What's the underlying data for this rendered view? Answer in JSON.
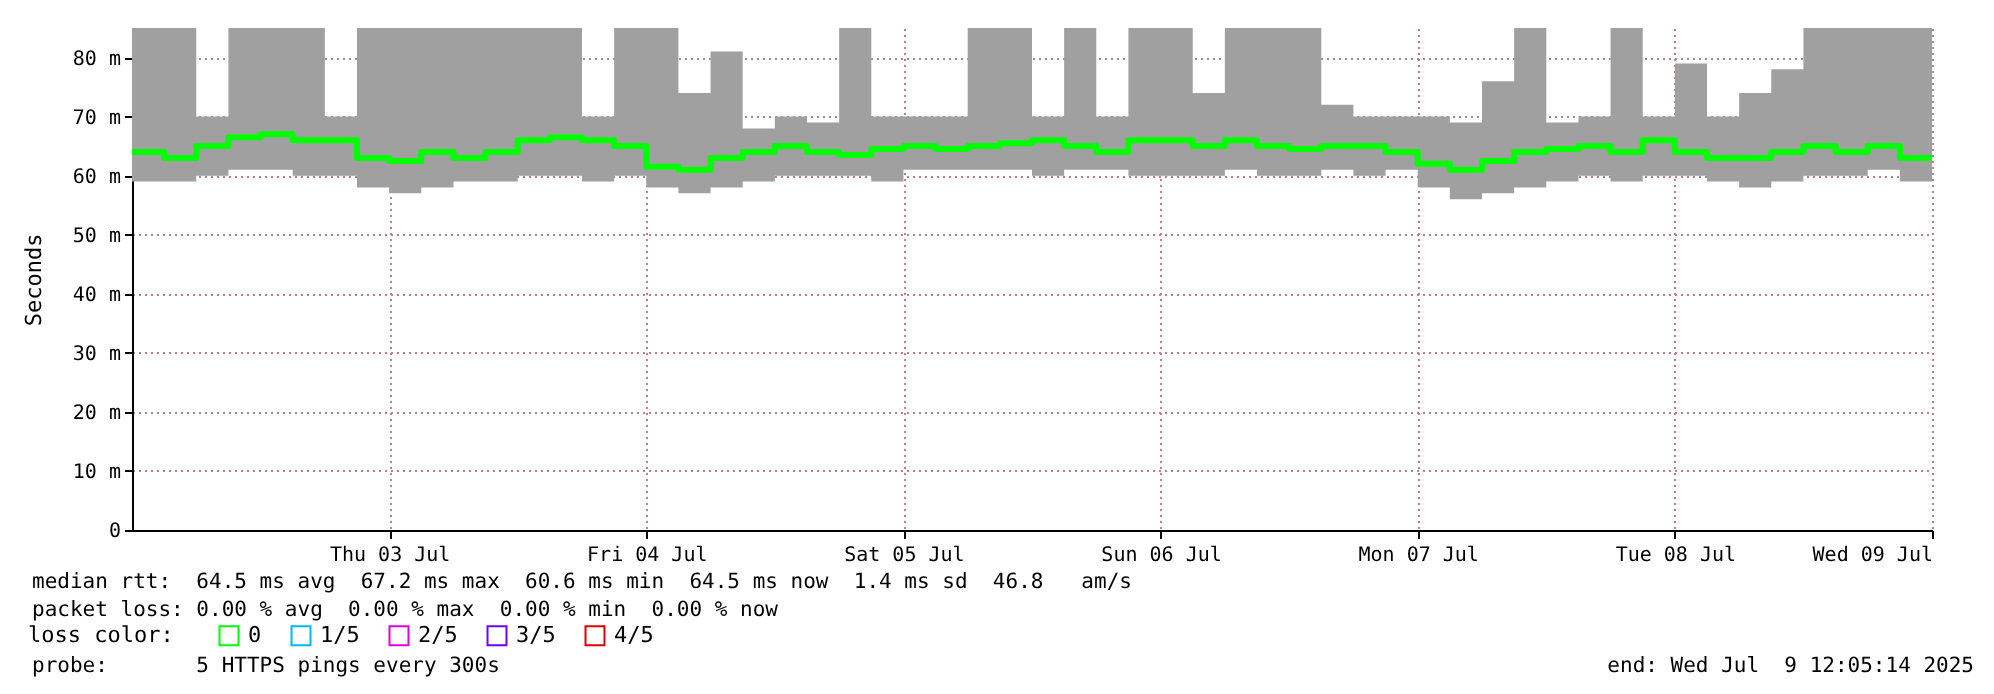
{
  "chart_data": {
    "type": "step",
    "ylabel": "Seconds",
    "x": [
      "2025-07-02T00:00",
      "2025-07-02T03:00",
      "2025-07-02T06:00",
      "2025-07-02T09:00",
      "2025-07-02T12:00",
      "2025-07-02T15:00",
      "2025-07-02T18:00",
      "2025-07-02T21:00",
      "2025-07-03T00:00",
      "2025-07-03T03:00",
      "2025-07-03T06:00",
      "2025-07-03T09:00",
      "2025-07-03T12:00",
      "2025-07-03T15:00",
      "2025-07-03T18:00",
      "2025-07-03T21:00",
      "2025-07-04T00:00",
      "2025-07-04T03:00",
      "2025-07-04T06:00",
      "2025-07-04T09:00",
      "2025-07-04T12:00",
      "2025-07-04T15:00",
      "2025-07-04T18:00",
      "2025-07-04T21:00",
      "2025-07-05T00:00",
      "2025-07-05T03:00",
      "2025-07-05T06:00",
      "2025-07-05T09:00",
      "2025-07-05T12:00",
      "2025-07-05T15:00",
      "2025-07-05T18:00",
      "2025-07-05T21:00",
      "2025-07-06T00:00",
      "2025-07-06T03:00",
      "2025-07-06T06:00",
      "2025-07-06T09:00",
      "2025-07-06T12:00",
      "2025-07-06T15:00",
      "2025-07-06T18:00",
      "2025-07-06T21:00",
      "2025-07-07T00:00",
      "2025-07-07T03:00",
      "2025-07-07T06:00",
      "2025-07-07T09:00",
      "2025-07-07T12:00",
      "2025-07-07T15:00",
      "2025-07-07T18:00",
      "2025-07-07T21:00",
      "2025-07-08T00:00",
      "2025-07-08T03:00",
      "2025-07-08T06:00",
      "2025-07-08T09:00",
      "2025-07-08T12:00",
      "2025-07-08T15:00",
      "2025-07-08T18:00",
      "2025-07-08T21:00",
      "2025-07-09T00:00"
    ],
    "series": [
      {
        "name": "0",
        "color": "#00ff00",
        "values": [
          64,
          63,
          65,
          66.5,
          67,
          66,
          66,
          63,
          62.5,
          64,
          63,
          64,
          66,
          66.5,
          66,
          65,
          61.5,
          61,
          63,
          64,
          65,
          64,
          63.5,
          64.5,
          65,
          64.5,
          65,
          65.5,
          66,
          65,
          64,
          66,
          66,
          65,
          66,
          65,
          64.5,
          65,
          65,
          64,
          62,
          61,
          62.5,
          64,
          64.5,
          65,
          64,
          66,
          64,
          63,
          63,
          64,
          65,
          64,
          65,
          63,
          63
        ],
        "lower": [
          59,
          59,
          60,
          61,
          61,
          60,
          60,
          58,
          57,
          58,
          59,
          59,
          60,
          60,
          59,
          60,
          58,
          57,
          58,
          59,
          60,
          60,
          60,
          59,
          61,
          61,
          61,
          61,
          60,
          61,
          61,
          60,
          60,
          60,
          61,
          60,
          60,
          61,
          60,
          61,
          58,
          56,
          57,
          58,
          59,
          60,
          59,
          60,
          60,
          59,
          58,
          59,
          60,
          60,
          61,
          59,
          59
        ],
        "upper": [
          85,
          85,
          70,
          85,
          85,
          85,
          70,
          85,
          85,
          85,
          85,
          85,
          85,
          85,
          70,
          85,
          85,
          74,
          81,
          68,
          70,
          69,
          85,
          70,
          70,
          70,
          85,
          85,
          70,
          85,
          70,
          85,
          85,
          74,
          85,
          85,
          85,
          72,
          70,
          70,
          70,
          69,
          76,
          85,
          69,
          70,
          85,
          70,
          79,
          70,
          74,
          78,
          85,
          85,
          85,
          85,
          85
        ]
      },
      {
        "name": "1/5",
        "color": "#00b8ff",
        "values": [
          null,
          null,
          null,
          null,
          null,
          null,
          null,
          null,
          null,
          null,
          null,
          null,
          null,
          null,
          null,
          null,
          null,
          null,
          null,
          null,
          null,
          null,
          null,
          null,
          null,
          null,
          null,
          null,
          null,
          null,
          null,
          null,
          null,
          null,
          null,
          null,
          null,
          null,
          null,
          null,
          null,
          null,
          null,
          null,
          null,
          null,
          null,
          null,
          null,
          null,
          null,
          null,
          null,
          null,
          null,
          null,
          null
        ]
      },
      {
        "name": "2/5",
        "color": "#e000e0",
        "values": [
          null,
          null,
          null,
          null,
          null,
          null,
          null,
          null,
          null,
          null,
          null,
          null,
          null,
          null,
          null,
          null,
          null,
          null,
          null,
          null,
          null,
          null,
          null,
          null,
          null,
          null,
          null,
          null,
          null,
          null,
          null,
          null,
          null,
          null,
          null,
          null,
          null,
          null,
          null,
          null,
          null,
          null,
          null,
          null,
          null,
          null,
          null,
          null,
          null,
          null,
          null,
          null,
          null,
          null,
          null,
          null,
          null
        ]
      },
      {
        "name": "3/5",
        "color": "#7000ff",
        "values": [
          null,
          null,
          null,
          null,
          null,
          null,
          null,
          null,
          null,
          null,
          null,
          null,
          null,
          null,
          null,
          null,
          null,
          null,
          null,
          null,
          null,
          null,
          null,
          null,
          null,
          null,
          null,
          null,
          null,
          null,
          null,
          null,
          null,
          null,
          null,
          null,
          null,
          null,
          null,
          null,
          null,
          null,
          null,
          null,
          null,
          null,
          null,
          null,
          null,
          null,
          null,
          null,
          null,
          null,
          null,
          null,
          null
        ]
      },
      {
        "name": "4/5",
        "color": "#e00000",
        "values": [
          null,
          null,
          null,
          null,
          null,
          null,
          null,
          null,
          null,
          null,
          null,
          null,
          null,
          null,
          null,
          null,
          null,
          null,
          null,
          null,
          null,
          null,
          null,
          null,
          null,
          null,
          null,
          null,
          null,
          null,
          null,
          null,
          null,
          null,
          null,
          null,
          null,
          null,
          null,
          null,
          null,
          null,
          null,
          null,
          null,
          null,
          null,
          null,
          null,
          null,
          null,
          null,
          null,
          null,
          null,
          null,
          null
        ]
      }
    ],
    "legend_title": "loss color:",
    "legend": "bottom left",
    "grid": true,
    "xlim": [
      "2025-07-02T00:00",
      "2025-07-09T00:00"
    ],
    "xticks": [
      {
        "value": "2025-07-03T00:00",
        "label": "Thu 03 Jul"
      },
      {
        "value": "2025-07-04T00:00",
        "label": "Fri 04 Jul"
      },
      {
        "value": "2025-07-05T00:00",
        "label": "Sat 05 Jul"
      },
      {
        "value": "2025-07-06T00:00",
        "label": "Sun 06 Jul"
      },
      {
        "value": "2025-07-07T00:00",
        "label": "Mon 07 Jul"
      },
      {
        "value": "2025-07-08T00:00",
        "label": "Tue 08 Jul"
      },
      {
        "value": "2025-07-09T00:00",
        "label": "Wed 09 Jul"
      }
    ],
    "ylim": [
      0,
      85
    ],
    "yticks": [
      0,
      {
        "value": 10,
        "label": "10 m"
      },
      {
        "value": 20,
        "label": "20 m"
      },
      {
        "value": 30,
        "label": "30 m"
      },
      {
        "value": 40,
        "label": "40 m"
      },
      {
        "value": 50,
        "label": "50 m"
      },
      {
        "value": 60,
        "label": "60 m"
      },
      {
        "value": 70,
        "label": "70 m"
      },
      {
        "value": 80,
        "label": "80 m"
      }
    ],
    "annotations": [
      "median rtt:  64.5 ms avg  67.2 ms max  60.6 ms min  64.5 ms now  1.4 ms sd  46.8   am/s",
      "packet loss: 0.00 % avg  0.00 % max  0.00 % min  0.00 % now",
      "probe:       5 HTTPS pings every 300s",
      "end: Wed Jul  9 12:05:14 2025"
    ]
  }
}
